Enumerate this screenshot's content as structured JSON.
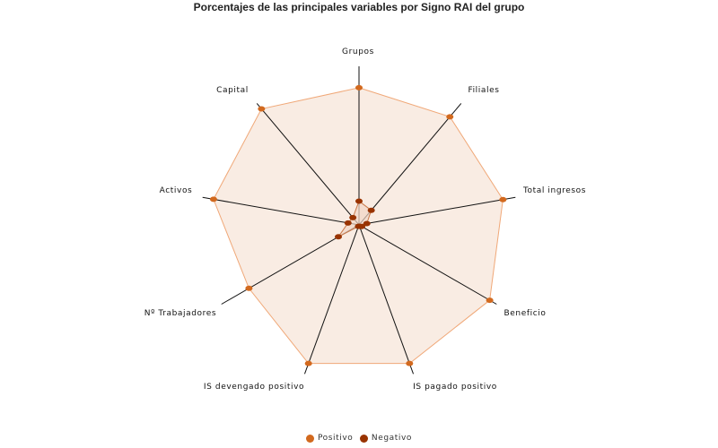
{
  "chart_data": {
    "type": "radar",
    "title": "Porcentajes de las principales variables por Signo RAI del grupo",
    "categories": [
      "Grupos",
      "Filiales",
      "Total ingresos",
      "Beneficio",
      "IS pagado positivo",
      "IS devengado positivo",
      "Nº Trabajadores",
      "Activos",
      "Capital"
    ],
    "series": [
      {
        "name": "Positivo",
        "color": "#d2691e",
        "values": [
          86.5,
          89,
          92,
          95,
          93,
          93,
          80,
          93,
          95.5
        ]
      },
      {
        "name": "Negativo",
        "color": "#993300",
        "values": [
          15,
          12,
          5,
          2,
          1,
          1,
          15,
          7,
          6
        ]
      }
    ],
    "rlim": [
      0,
      100
    ],
    "grid": false,
    "legend_position": "bottom",
    "fill_color": "#f9ece3",
    "positive_line_color": "#f0a878",
    "axis_color": "#111111"
  },
  "legend": {
    "items": [
      {
        "label": "Positivo",
        "color": "#d2691e"
      },
      {
        "label": "Negativo",
        "color": "#993300"
      }
    ]
  }
}
